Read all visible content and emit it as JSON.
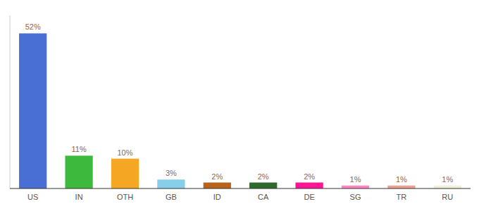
{
  "chart_data": {
    "type": "bar",
    "categories": [
      "US",
      "IN",
      "OTH",
      "GB",
      "ID",
      "CA",
      "DE",
      "SG",
      "TR",
      "RU"
    ],
    "values": [
      52,
      11,
      10,
      3,
      2,
      2,
      2,
      1,
      1,
      1
    ],
    "value_labels": [
      "52%",
      "11%",
      "10%",
      "3%",
      "2%",
      "2%",
      "2%",
      "1%",
      "1%",
      "1%"
    ],
    "colors": [
      "#4a6fd4",
      "#3dba3d",
      "#f5a623",
      "#87ceeb",
      "#b8621a",
      "#2d6a2d",
      "#ff1493",
      "#ff85c2",
      "#e8a090",
      "#f0eed8"
    ],
    "ylim": [
      0,
      58
    ],
    "data_labels": true,
    "tick_labels": "x"
  }
}
